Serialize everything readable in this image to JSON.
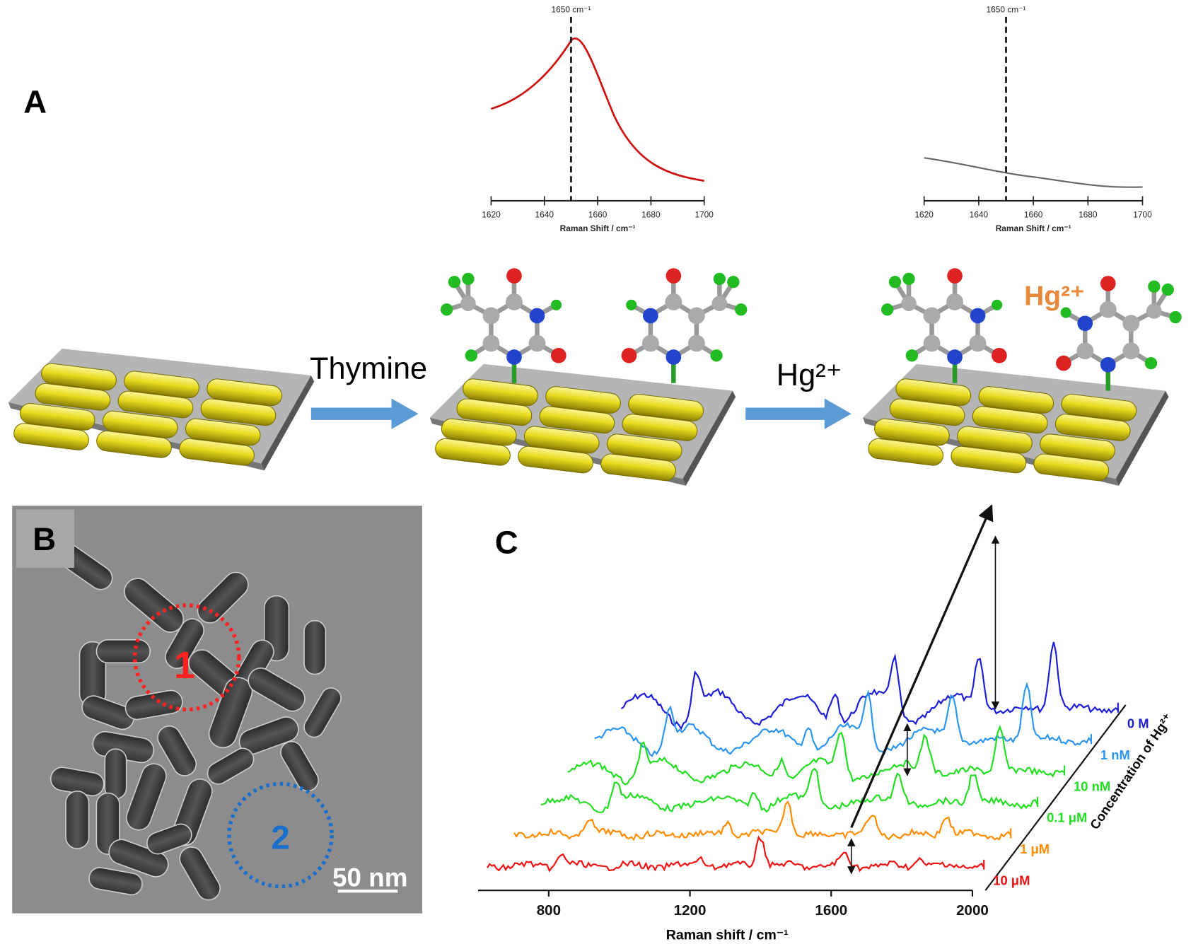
{
  "panel_a": {
    "label": "A",
    "spectrum_before": {
      "marker": {
        "value": 1650,
        "label": "1650 cm⁻¹"
      },
      "xlim": [
        1620,
        1700
      ],
      "xticks": [
        1620,
        1640,
        1660,
        1680,
        1700
      ],
      "xlabel": "Raman Shift / cm⁻¹",
      "color": "#cc1111"
    },
    "spectrum_after": {
      "marker": {
        "value": 1650,
        "label": "1650 cm⁻¹"
      },
      "xlim": [
        1620,
        1700
      ],
      "xticks": [
        1620,
        1640,
        1660,
        1680,
        1700
      ],
      "xlabel": "Raman Shift / cm⁻¹",
      "color": "#666666"
    },
    "step1": "Thymine",
    "step2": "Hg²⁺",
    "ion_label": "Hg²⁺"
  },
  "panel_b": {
    "label": "B",
    "regions": [
      "1",
      "2"
    ],
    "scale_bar": "50 nm"
  },
  "panel_c": {
    "label": "C",
    "xlim": [
      600,
      2000
    ],
    "xticks": [
      800,
      1200,
      1600,
      2000
    ],
    "xlabel": "Raman shift / cm⁻¹",
    "depth_label": "Concentration of Hg²⁺",
    "series": [
      {
        "name": "0 M",
        "color": "#1c1cd8"
      },
      {
        "name": "1 nM",
        "color": "#2b94f0"
      },
      {
        "name": "10 nM",
        "color": "#22dd22"
      },
      {
        "name": "0.1 μM",
        "color": "#22dd22"
      },
      {
        "name": "1 μM",
        "color": "#ff8c00"
      },
      {
        "name": "10 μM",
        "color": "#ee1111"
      }
    ]
  }
}
